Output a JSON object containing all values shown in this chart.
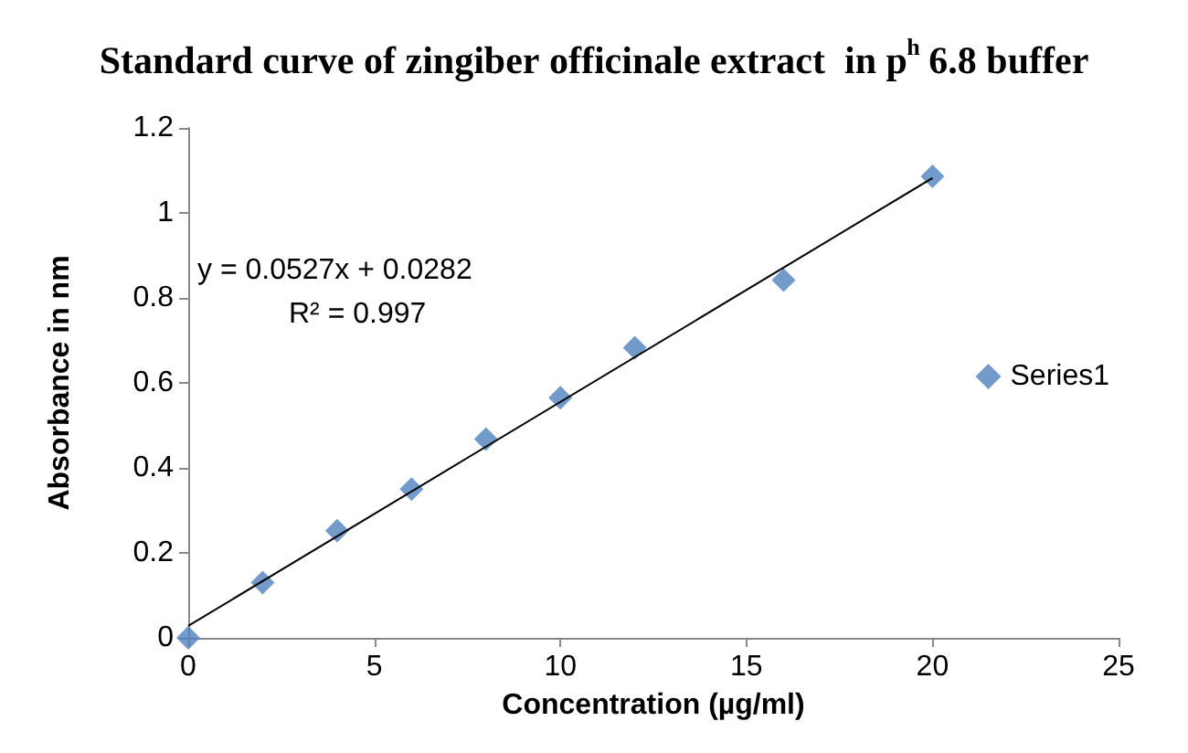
{
  "chart_data": {
    "type": "scatter",
    "title": "Standard curve of zingiber officinale extract  in p$^{h}$ 6.8 buffer",
    "xlabel": "Concentration (µg/ml)",
    "ylabel": "Absorbance in nm",
    "x": [
      0,
      2,
      4,
      6,
      8,
      10,
      12,
      16,
      20
    ],
    "series": [
      {
        "name": "Series1",
        "color": "#4f81bd",
        "marker": "diamond",
        "values": [
          0,
          0.13,
          0.252,
          0.35,
          0.468,
          0.565,
          0.683,
          0.842,
          1.086
        ]
      },
      {
        "type": "line",
        "color": "#000000",
        "marker": "none",
        "x": [
          0,
          20
        ],
        "values": [
          0.0282,
          1.0822
        ]
      }
    ],
    "annotations": [
      "y = 0.0527x + 0.0282",
      "R² = 0.997"
    ],
    "xlim": [
      0,
      25
    ],
    "xticks": [
      0,
      5,
      10,
      15,
      20,
      25
    ],
    "ylim": [
      0,
      1.2
    ],
    "yticks": [
      0,
      0.2,
      0.4,
      0.6,
      0.8,
      1,
      1.2
    ],
    "grid": false,
    "legend": "right"
  }
}
